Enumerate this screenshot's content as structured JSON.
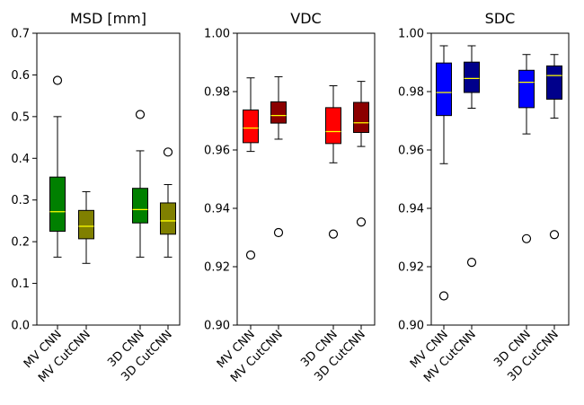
{
  "chart_data": [
    {
      "type": "box",
      "title": "MSD [mm]",
      "xlabel": "",
      "ylabel": "",
      "ylim": [
        0.0,
        0.7
      ],
      "yticks": [
        "0.0",
        "0.1",
        "0.2",
        "0.3",
        "0.4",
        "0.5",
        "0.6",
        "0.7"
      ],
      "categories": [
        "MV CNN",
        "MV CutCNN",
        "3D CNN",
        "3D CutCNN"
      ],
      "series": [
        {
          "category": "MV CNN",
          "color": "#008000",
          "whisker_low": 0.163,
          "q1": 0.225,
          "median": 0.272,
          "q3": 0.355,
          "whisker_high": 0.5,
          "outliers": [
            0.587
          ]
        },
        {
          "category": "MV CutCNN",
          "color": "#808000",
          "whisker_low": 0.148,
          "q1": 0.207,
          "median": 0.237,
          "q3": 0.275,
          "whisker_high": 0.32,
          "outliers": []
        },
        {
          "category": "3D CNN",
          "color": "#008000",
          "whisker_low": 0.163,
          "q1": 0.245,
          "median": 0.277,
          "q3": 0.328,
          "whisker_high": 0.418,
          "outliers": [
            0.505
          ]
        },
        {
          "category": "3D CutCNN",
          "color": "#808000",
          "whisker_low": 0.163,
          "q1": 0.218,
          "median": 0.25,
          "q3": 0.293,
          "whisker_high": 0.337,
          "outliers": [
            0.415
          ]
        }
      ]
    },
    {
      "type": "box",
      "title": "VDC",
      "xlabel": "",
      "ylabel": "",
      "ylim": [
        0.9,
        1.0
      ],
      "yticks": [
        "0.90",
        "0.92",
        "0.94",
        "0.96",
        "0.98",
        "1.00"
      ],
      "categories": [
        "MV CNN",
        "MV CutCNN",
        "3D CNN",
        "3D CutCNN"
      ],
      "series": [
        {
          "category": "MV CNN",
          "color": "#ff0000",
          "whisker_low": 0.9595,
          "q1": 0.9625,
          "median": 0.9675,
          "q3": 0.9737,
          "whisker_high": 0.9847,
          "outliers": [
            0.924
          ]
        },
        {
          "category": "MV CutCNN",
          "color": "#8b0000",
          "whisker_low": 0.9637,
          "q1": 0.9692,
          "median": 0.9718,
          "q3": 0.9765,
          "whisker_high": 0.9851,
          "outliers": [
            0.9317
          ]
        },
        {
          "category": "3D CNN",
          "color": "#ff0000",
          "whisker_low": 0.9556,
          "q1": 0.9622,
          "median": 0.9663,
          "q3": 0.9745,
          "whisker_high": 0.982,
          "outliers": [
            0.9312
          ]
        },
        {
          "category": "3D CutCNN",
          "color": "#8b0000",
          "whisker_low": 0.9612,
          "q1": 0.966,
          "median": 0.9693,
          "q3": 0.9763,
          "whisker_high": 0.9835,
          "outliers": [
            0.9353
          ]
        }
      ]
    },
    {
      "type": "box",
      "title": "SDC",
      "xlabel": "",
      "ylabel": "",
      "ylim": [
        0.9,
        1.0
      ],
      "yticks": [
        "0.90",
        "0.92",
        "0.94",
        "0.96",
        "0.98",
        "1.00"
      ],
      "categories": [
        "MV CNN",
        "MV CutCNN",
        "3D CNN",
        "3D CutCNN"
      ],
      "series": [
        {
          "category": "MV CNN",
          "color": "#0000ff",
          "whisker_low": 0.9553,
          "q1": 0.9718,
          "median": 0.9797,
          "q3": 0.9898,
          "whisker_high": 0.9957,
          "outliers": [
            0.91
          ]
        },
        {
          "category": "MV CutCNN",
          "color": "#00008b",
          "whisker_low": 0.9743,
          "q1": 0.9797,
          "median": 0.9845,
          "q3": 0.9901,
          "whisker_high": 0.9957,
          "outliers": [
            0.9215
          ]
        },
        {
          "category": "3D CNN",
          "color": "#0000ff",
          "whisker_low": 0.9655,
          "q1": 0.9745,
          "median": 0.9832,
          "q3": 0.9873,
          "whisker_high": 0.9927,
          "outliers": [
            0.9296
          ]
        },
        {
          "category": "3D CutCNN",
          "color": "#00008b",
          "whisker_low": 0.9709,
          "q1": 0.9774,
          "median": 0.9855,
          "q3": 0.9888,
          "whisker_high": 0.9927,
          "outliers": [
            0.931
          ]
        }
      ]
    }
  ]
}
